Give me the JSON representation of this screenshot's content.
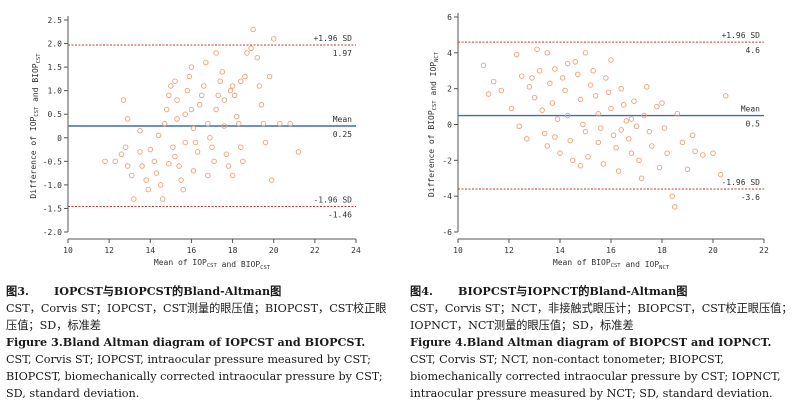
{
  "chart_data": [
    {
      "type": "scatter",
      "subtype": "bland-altman",
      "ylabel": "Difference of IOP_CST and BIOP_CST",
      "xlabel": "Mean of IOP_CST and BIOP_CST",
      "xlim": [
        10,
        24
      ],
      "ylim": [
        -2.0,
        2.5
      ],
      "xticks": [
        "10",
        "12",
        "14",
        "16",
        "18",
        "20",
        "22",
        "24"
      ],
      "yticks": [
        "2.5",
        "2.0",
        "1.5",
        "1.0",
        "0.5",
        "0",
        "-0.5",
        "-1.0",
        "-1.5",
        "-2.0"
      ],
      "yticks_values": [
        2.5,
        2.0,
        1.5,
        1.0,
        0.5,
        0,
        -0.5,
        -1.0,
        -1.5,
        -2.0
      ],
      "xticks_values": [
        10,
        12,
        14,
        16,
        18,
        20,
        22,
        24
      ],
      "upper_loa": 1.97,
      "upper_label": "+1.96 SD",
      "upper_value_label": "1.97",
      "mean": 0.25,
      "mean_label": "Mean",
      "mean_value_label": "0.25",
      "lower_loa": -1.46,
      "lower_label": "-1.96 SD",
      "lower_value_label": "-1.46",
      "points": [
        [
          12.7,
          0.8
        ],
        [
          12.9,
          0.4
        ],
        [
          12.8,
          -0.2
        ],
        [
          12.6,
          -0.35
        ],
        [
          12.3,
          -0.5
        ],
        [
          11.8,
          -0.5
        ],
        [
          12.9,
          -0.6
        ],
        [
          13.1,
          -0.8
        ],
        [
          13.2,
          -1.3
        ],
        [
          13.5,
          -0.3
        ],
        [
          13.6,
          -0.6
        ],
        [
          13.8,
          -0.9
        ],
        [
          13.9,
          -1.1
        ],
        [
          13.5,
          0.15
        ],
        [
          14.0,
          -0.25
        ],
        [
          14.2,
          -0.5
        ],
        [
          14.3,
          -0.75
        ],
        [
          14.5,
          -1.0
        ],
        [
          14.6,
          -1.3
        ],
        [
          14.4,
          0.05
        ],
        [
          14.7,
          0.3
        ],
        [
          14.8,
          0.6
        ],
        [
          14.9,
          0.9
        ],
        [
          15.0,
          1.1
        ],
        [
          15.2,
          1.2
        ],
        [
          15.3,
          0.8
        ],
        [
          15.1,
          -0.2
        ],
        [
          15.2,
          -0.4
        ],
        [
          15.4,
          -0.6
        ],
        [
          15.5,
          -0.9
        ],
        [
          15.6,
          -1.1
        ],
        [
          15.3,
          0.4
        ],
        [
          15.7,
          0.5
        ],
        [
          15.8,
          1.0
        ],
        [
          15.9,
          1.3
        ],
        [
          16.0,
          1.5
        ],
        [
          16.1,
          0.2
        ],
        [
          16.2,
          -0.1
        ],
        [
          16.3,
          -0.3
        ],
        [
          16.1,
          -0.7
        ],
        [
          16.4,
          0.7
        ],
        [
          16.5,
          0.9
        ],
        [
          16.6,
          1.1
        ],
        [
          16.7,
          1.6
        ],
        [
          16.8,
          0.3
        ],
        [
          16.9,
          0.0
        ],
        [
          17.0,
          -0.2
        ],
        [
          17.1,
          -0.5
        ],
        [
          16.8,
          -0.8
        ],
        [
          17.2,
          0.6
        ],
        [
          17.3,
          0.9
        ],
        [
          17.4,
          1.2
        ],
        [
          17.5,
          1.4
        ],
        [
          17.6,
          0.25
        ],
        [
          17.7,
          -0.35
        ],
        [
          17.8,
          -0.6
        ],
        [
          17.9,
          1.0
        ],
        [
          18.0,
          1.1
        ],
        [
          18.1,
          0.9
        ],
        [
          18.2,
          0.45
        ],
        [
          18.3,
          0.3
        ],
        [
          18.4,
          -0.2
        ],
        [
          18.5,
          -0.5
        ],
        [
          18.0,
          -0.8
        ],
        [
          18.6,
          1.3
        ],
        [
          18.7,
          1.8
        ],
        [
          18.9,
          1.9
        ],
        [
          19.0,
          2.3
        ],
        [
          19.2,
          1.7
        ],
        [
          19.3,
          1.1
        ],
        [
          19.4,
          0.7
        ],
        [
          19.5,
          0.3
        ],
        [
          19.6,
          -0.1
        ],
        [
          19.8,
          1.3
        ],
        [
          20.0,
          2.1
        ],
        [
          20.3,
          0.3
        ],
        [
          20.8,
          0.3
        ],
        [
          21.2,
          -0.3
        ],
        [
          19.9,
          -0.9
        ],
        [
          17.2,
          1.8
        ],
        [
          16.0,
          0.6
        ],
        [
          15.7,
          -0.1
        ],
        [
          14.9,
          -0.55
        ],
        [
          17.6,
          0.8
        ],
        [
          18.4,
          1.2
        ]
      ]
    },
    {
      "type": "scatter",
      "subtype": "bland-altman",
      "ylabel": "Difference of BIOP_CST and IOP_NCT",
      "xlabel": "Mean of BIOP_CST and IOP_NCT",
      "xlim": [
        10,
        22
      ],
      "ylim": [
        -6,
        6
      ],
      "xticks": [
        "10",
        "12",
        "14",
        "16",
        "18",
        "20",
        "22"
      ],
      "yticks": [
        "6",
        "4",
        "2",
        "0",
        "-2",
        "-4",
        "-6"
      ],
      "yticks_values": [
        6,
        4,
        2,
        0,
        -2,
        -4,
        -6
      ],
      "xticks_values": [
        10,
        12,
        14,
        16,
        18,
        20,
        22
      ],
      "upper_loa": 4.6,
      "upper_label": "+1.96 SD",
      "upper_value_label": "4.6",
      "mean": 0.5,
      "mean_label": "Mean",
      "mean_value_label": "0.5",
      "lower_loa": -3.6,
      "lower_label": "-1.96 SD",
      "lower_value_label": "-3.6",
      "points": [
        [
          11.0,
          3.3
        ],
        [
          11.2,
          1.7
        ],
        [
          11.4,
          2.4
        ],
        [
          11.7,
          1.9
        ],
        [
          12.1,
          0.9
        ],
        [
          12.3,
          3.9
        ],
        [
          12.5,
          2.7
        ],
        [
          12.4,
          -0.1
        ],
        [
          12.7,
          -0.8
        ],
        [
          12.8,
          2.1
        ],
        [
          13.0,
          1.5
        ],
        [
          13.1,
          4.2
        ],
        [
          13.2,
          3.0
        ],
        [
          13.3,
          0.8
        ],
        [
          13.4,
          -0.5
        ],
        [
          13.5,
          -1.2
        ],
        [
          13.6,
          2.3
        ],
        [
          13.7,
          1.2
        ],
        [
          13.8,
          3.1
        ],
        [
          13.9,
          0.3
        ],
        [
          14.0,
          -1.6
        ],
        [
          14.1,
          2.6
        ],
        [
          14.2,
          1.9
        ],
        [
          14.3,
          0.5
        ],
        [
          14.4,
          -0.9
        ],
        [
          14.5,
          -2.0
        ],
        [
          14.6,
          3.5
        ],
        [
          14.7,
          2.8
        ],
        [
          14.8,
          1.4
        ],
        [
          14.9,
          0.0
        ],
        [
          15.0,
          -0.4
        ],
        [
          15.1,
          -1.8
        ],
        [
          15.2,
          2.2
        ],
        [
          15.3,
          3.0
        ],
        [
          15.4,
          1.6
        ],
        [
          15.5,
          0.6
        ],
        [
          15.6,
          -0.2
        ],
        [
          15.7,
          -2.2
        ],
        [
          15.8,
          2.6
        ],
        [
          15.9,
          1.8
        ],
        [
          16.0,
          0.9
        ],
        [
          16.1,
          -0.6
        ],
        [
          16.2,
          -1.3
        ],
        [
          16.3,
          -2.6
        ],
        [
          16.4,
          2.0
        ],
        [
          16.5,
          1.1
        ],
        [
          16.6,
          0.2
        ],
        [
          16.7,
          -0.8
        ],
        [
          16.8,
          -1.6
        ],
        [
          16.9,
          1.3
        ],
        [
          17.0,
          -0.1
        ],
        [
          17.1,
          -2.0
        ],
        [
          17.2,
          -3.0
        ],
        [
          17.3,
          0.5
        ],
        [
          17.5,
          -0.4
        ],
        [
          17.6,
          -1.2
        ],
        [
          17.8,
          1.0
        ],
        [
          17.9,
          -2.4
        ],
        [
          18.1,
          -0.2
        ],
        [
          18.2,
          -1.6
        ],
        [
          18.4,
          -4.0
        ],
        [
          18.5,
          -4.6
        ],
        [
          18.6,
          0.6
        ],
        [
          18.8,
          -1.0
        ],
        [
          19.0,
          -2.5
        ],
        [
          19.3,
          -1.5
        ],
        [
          19.6,
          -1.7
        ],
        [
          20.0,
          -1.6
        ],
        [
          20.3,
          -2.8
        ],
        [
          20.5,
          1.6
        ],
        [
          14.3,
          3.4
        ],
        [
          15.0,
          4.0
        ],
        [
          16.0,
          3.6
        ],
        [
          13.5,
          4.0
        ],
        [
          12.9,
          2.6
        ],
        [
          15.5,
          -1.0
        ],
        [
          16.8,
          0.3
        ],
        [
          17.4,
          2.1
        ],
        [
          18.0,
          1.2
        ],
        [
          19.2,
          -0.6
        ],
        [
          13.8,
          -0.7
        ],
        [
          14.8,
          -2.3
        ],
        [
          16.4,
          -0.3
        ]
      ]
    }
  ],
  "captions": {
    "left": {
      "cn_title_num": "图3.",
      "cn_title_text": "IOPCST与BIOPCST的Bland-Altman图",
      "cn_body": "CST，Corvis ST；IOPCST，CST测量的眼压值；BIOPCST，CST校正眼压值；SD，标准差",
      "en_title_num": "Figure 3.",
      "en_title_text": "Bland Altman diagram of IOPCST and BIOPCST.",
      "en_body": "CST, Corvis ST; IOPCST, intraocular pressure measured by CST; BIOPCST, biomechanically corrected intraocular pressure by CST; SD, standard deviation."
    },
    "right": {
      "cn_title_num": "图4.",
      "cn_title_text": "BIOPCST与IOPNCT的Bland-Altman图",
      "cn_body": "CST，Corvis ST；NCT，非接触式眼压计；BIOPCST，CST校正眼压值；IOPNCT，NCT测量的眼压值；SD，标准差",
      "en_title_num": "Figure 4.",
      "en_title_text": "Bland Altman diagram of BIOPCST and IOPNCT.",
      "en_body": "CST, Corvis ST; NCT, non-contact tonometer; BIOPCST, biomechanically corrected intraocular pressure by CST; IOPNCT, intraocular pressure measured by NCT; SD, standard deviation."
    }
  },
  "colors": {
    "point": "#f0a07a",
    "mean": "#3b6fb0",
    "loa": "#c0392b",
    "axis": "#555555"
  }
}
